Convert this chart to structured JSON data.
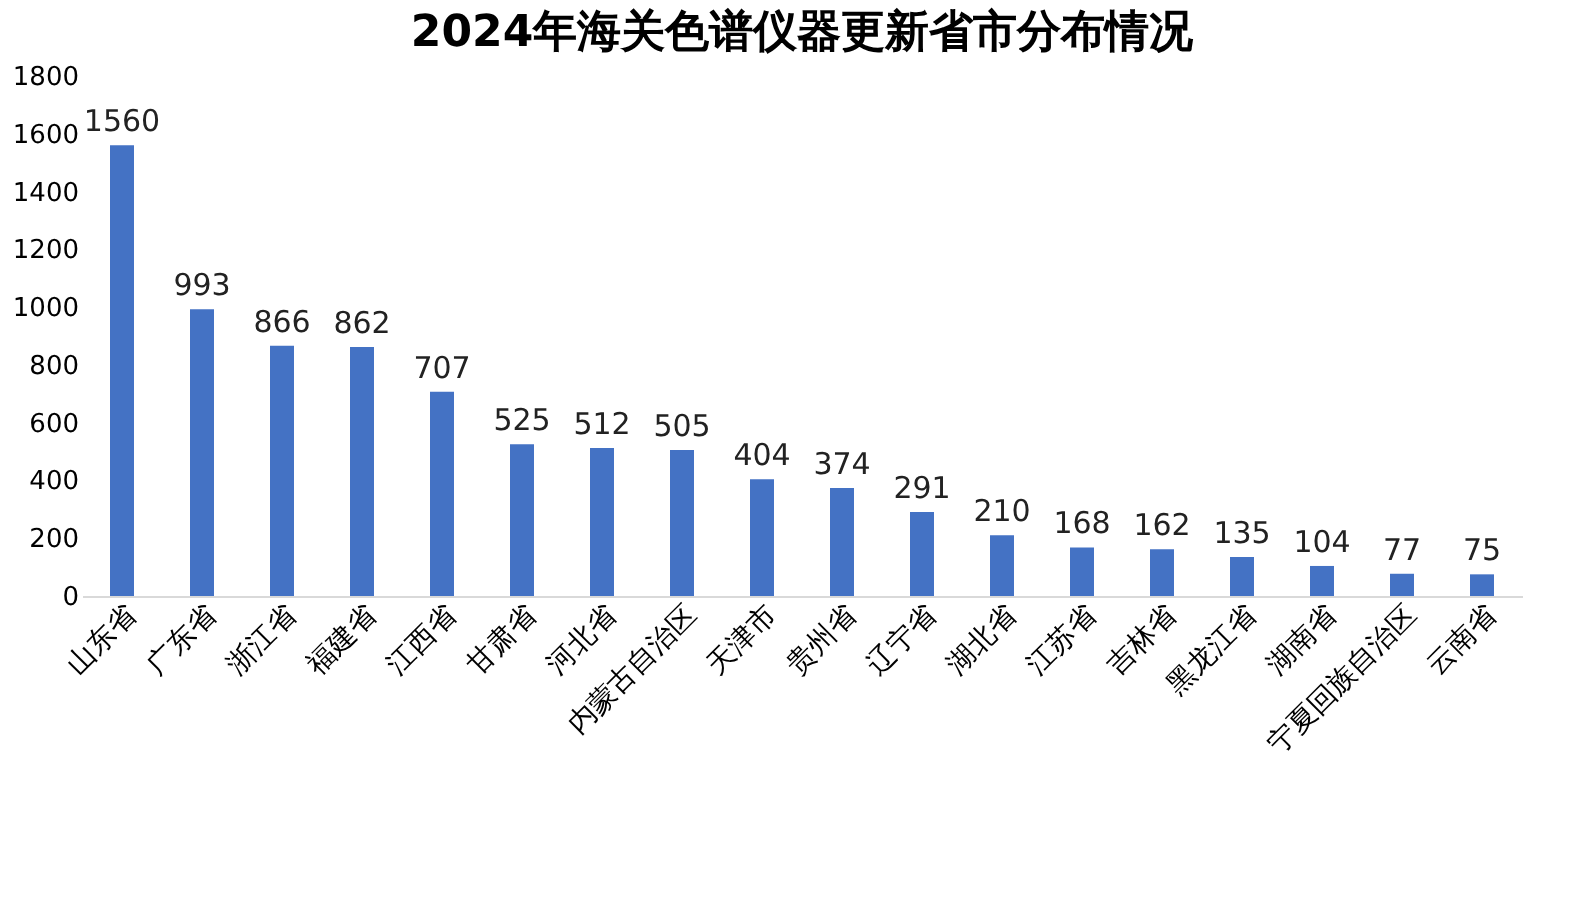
{
  "chart_data": {
    "type": "bar",
    "title": "2024年海关色谱仪器更新省市分布情况",
    "categories": [
      "山东省",
      "广东省",
      "浙江省",
      "福建省",
      "江西省",
      "甘肃省",
      "河北省",
      "内蒙古自治区",
      "天津市",
      "贵州省",
      "辽宁省",
      "湖北省",
      "江苏省",
      "吉林省",
      "黑龙江省",
      "湖南省",
      "宁夏回族自治区",
      "云南省"
    ],
    "values": [
      1560,
      993,
      866,
      862,
      707,
      525,
      512,
      505,
      404,
      374,
      291,
      210,
      168,
      162,
      135,
      104,
      77,
      75
    ],
    "color": "#4472c4",
    "ylim": [
      0,
      1800
    ],
    "yticks": [
      0,
      200,
      400,
      600,
      800,
      1000,
      1200,
      1400,
      1600,
      1800
    ],
    "grid": false,
    "data_labels": true
  }
}
